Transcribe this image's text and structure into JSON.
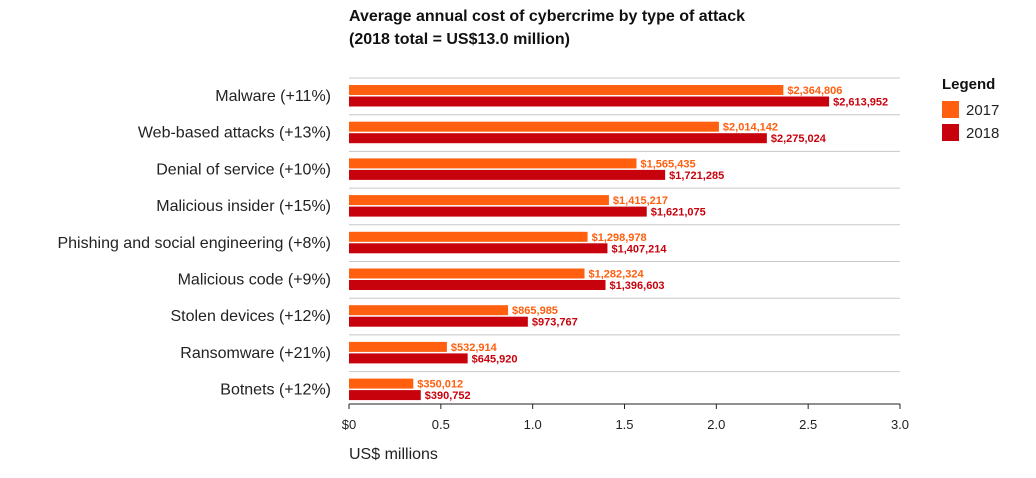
{
  "chart_data": {
    "type": "bar",
    "orientation": "horizontal",
    "title": "Average annual cost of cybercrime by type of attack",
    "subtitle": "(2018 total = US$13.0 million)",
    "xlabel": "US$ millions",
    "ylabel": "",
    "xlim": [
      0,
      3.0
    ],
    "x_ticks": [
      0,
      0.5,
      1.0,
      1.5,
      2.0,
      2.5,
      3.0
    ],
    "x_tick_labels": [
      "$0",
      "0.5",
      "1.0",
      "1.5",
      "2.0",
      "2.5",
      "3.0"
    ],
    "grid": "horizontal lines between categories",
    "legend": {
      "title": "Legend",
      "position": "right"
    },
    "categories": [
      "Malware (+11%)",
      "Web-based attacks (+13%)",
      "Denial of service (+10%)",
      "Malicious insider (+15%)",
      "Phishing and social engineering (+8%)",
      "Malicious code (+9%)",
      "Stolen devices (+12%)",
      "Ransomware (+21%)",
      "Botnets (+12%)"
    ],
    "series": [
      {
        "name": "2017",
        "color": "#ff5f0f",
        "values": [
          2364806,
          2014142,
          1565435,
          1415217,
          1298978,
          1282324,
          865985,
          532914,
          350012
        ],
        "labels": [
          "$2,364,806",
          "$2,014,142",
          "$1,565,435",
          "$1,415,217",
          "$1,298,978",
          "$1,282,324",
          "$865,985",
          "$532,914",
          "$350,012"
        ]
      },
      {
        "name": "2018",
        "color": "#c8020c",
        "values": [
          2613952,
          2275024,
          1721285,
          1621075,
          1407214,
          1396603,
          973767,
          645920,
          390752
        ],
        "labels": [
          "$2,613,952",
          "$2,275,024",
          "$1,721,285",
          "$1,621,075",
          "$1,407,214",
          "$1,396,603",
          "$973,767",
          "$645,920",
          "$390,752"
        ]
      }
    ]
  }
}
